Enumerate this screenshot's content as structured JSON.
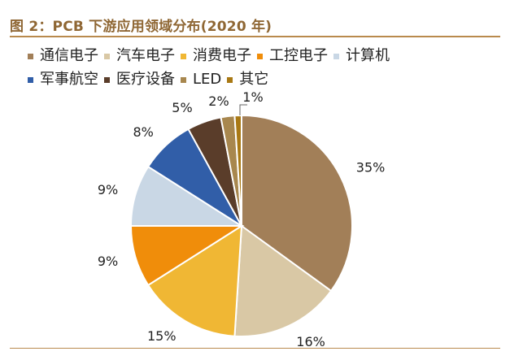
{
  "figure": {
    "title": "图 2：PCB 下游应用领域分布(2020 年)"
  },
  "colors": {
    "title": "#8f6734",
    "rule": "#b98a4d"
  },
  "chart_data": {
    "type": "pie",
    "title": "",
    "series": [
      {
        "name": "",
        "slices": [
          {
            "label": "通信电子",
            "value": 35,
            "display": "35%",
            "color": "#a27f58"
          },
          {
            "label": "汽车电子",
            "value": 16,
            "display": "16%",
            "color": "#d9c8a5"
          },
          {
            "label": "消费电子",
            "value": 15,
            "display": "15%",
            "color": "#f0b734"
          },
          {
            "label": "工控电子",
            "value": 9,
            "display": "9%",
            "color": "#f08d0a"
          },
          {
            "label": "计算机",
            "value": 9,
            "display": "9%",
            "color": "#c9d7e5"
          },
          {
            "label": "军事航空",
            "value": 8,
            "display": "8%",
            "color": "#315ea8"
          },
          {
            "label": "医疗设备",
            "value": 5,
            "display": "5%",
            "color": "#5a3d2a"
          },
          {
            "label": "LED",
            "value": 2,
            "display": "2%",
            "color": "#a8874e"
          },
          {
            "label": "其它",
            "value": 1,
            "display": "1%",
            "color": "#a97914"
          }
        ]
      }
    ],
    "legend_position": "top",
    "start": "top",
    "direction": "clockwise"
  }
}
